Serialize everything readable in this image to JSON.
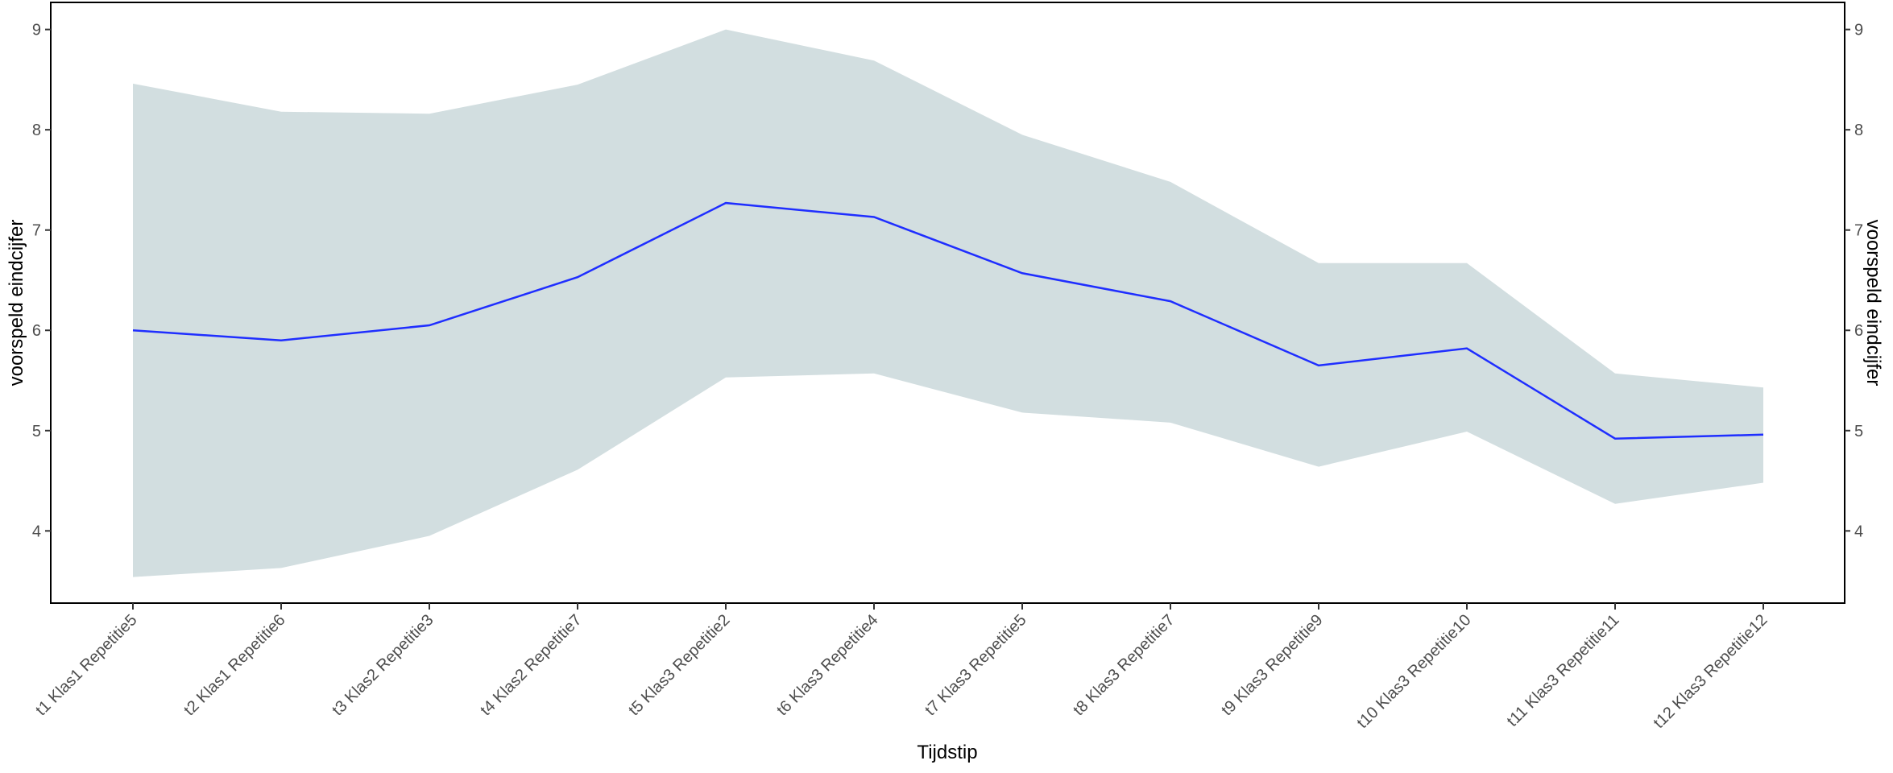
{
  "chart_data": {
    "type": "line",
    "xlabel": "Tijdstip",
    "ylabel": "voorspeld eindcijfer",
    "ylabel_right": "voorspeld eindcijfer",
    "ylim": [
      3.28,
      9.27
    ],
    "yticks": [
      4,
      5,
      6,
      7,
      8,
      9
    ],
    "grid": false,
    "categories": [
      "t1 Klas1 Repetitie5",
      "t2 Klas1 Repetitie6",
      "t3 Klas2 Repetitie3",
      "t4 Klas2 Repetitie7",
      "t5 Klas3 Repetitie2",
      "t6 Klas3 Repetitie4",
      "t7 Klas3 Repetitie5",
      "t8 Klas3 Repetitie7",
      "t9 Klas3 Repetitie9",
      "t10 Klas3 Repetitie10",
      "t11 Klas3 Repetitie11",
      "t12 Klas3 Repetitie12"
    ],
    "series": [
      {
        "values": [
          6.0,
          5.9,
          6.05,
          6.53,
          7.27,
          7.13,
          6.57,
          6.29,
          5.65,
          5.82,
          4.92,
          4.96
        ],
        "color": "#1f2eff"
      }
    ],
    "band": {
      "upper": [
        8.46,
        8.18,
        8.16,
        8.45,
        9.0,
        8.69,
        7.95,
        7.48,
        6.67,
        6.67,
        5.57,
        5.43
      ],
      "lower": [
        3.54,
        3.63,
        3.95,
        4.61,
        5.53,
        5.57,
        5.18,
        5.08,
        4.64,
        4.99,
        4.27,
        4.48
      ],
      "color": "#d2dee0"
    }
  }
}
